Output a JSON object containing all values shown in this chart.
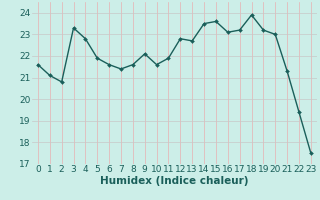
{
  "x": [
    0,
    1,
    2,
    3,
    4,
    5,
    6,
    7,
    8,
    9,
    10,
    11,
    12,
    13,
    14,
    15,
    16,
    17,
    18,
    19,
    20,
    21,
    22,
    23
  ],
  "y": [
    21.6,
    21.1,
    20.8,
    23.3,
    22.8,
    21.9,
    21.6,
    21.4,
    21.6,
    22.1,
    21.6,
    21.9,
    22.8,
    22.7,
    23.5,
    23.6,
    23.1,
    23.2,
    23.9,
    23.2,
    23.0,
    21.3,
    19.4,
    17.5
  ],
  "line_color": "#1a5f5a",
  "marker": "D",
  "marker_size": 2.0,
  "xlabel": "Humidex (Indice chaleur)",
  "ylim": [
    17,
    24.5
  ],
  "xlim": [
    -0.5,
    23.5
  ],
  "yticks": [
    17,
    18,
    19,
    20,
    21,
    22,
    23,
    24
  ],
  "xticks": [
    0,
    1,
    2,
    3,
    4,
    5,
    6,
    7,
    8,
    9,
    10,
    11,
    12,
    13,
    14,
    15,
    16,
    17,
    18,
    19,
    20,
    21,
    22,
    23
  ],
  "bg_color": "#cceee8",
  "grid_color_h": "#c8c8c8",
  "grid_color_v": "#e8b0b0",
  "tick_fontsize": 6.5,
  "xlabel_fontsize": 7.5,
  "line_width": 1.0
}
